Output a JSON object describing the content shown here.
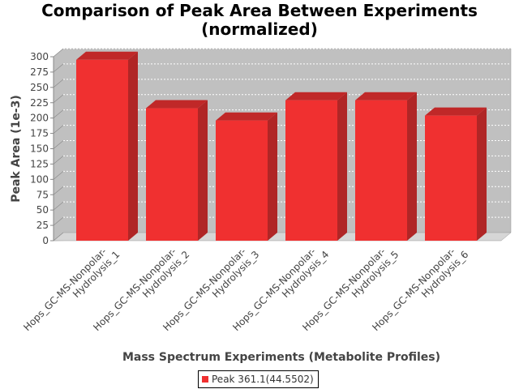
{
  "colors": {
    "bar_front": "#f03030",
    "bar_top": "#c02828",
    "bar_side": "#b02626",
    "plot_back": "#c0c0c0",
    "plot_floor": "#d6d6d6",
    "grid": "#ffffff"
  },
  "chart_data": {
    "type": "bar",
    "title": "Comparison of Peak Area Between Experiments\n(normalized)",
    "xlabel": "Mass Spectrum Experiments (Metabolite Profiles)",
    "ylabel": "Peak Area (1e-3)",
    "categories": [
      [
        "Hops_GC-MS-Nonpolar-",
        "Hydrolysis_1"
      ],
      [
        "Hops_GC-MS-Nonpolar-",
        "Hydrolysis_2"
      ],
      [
        "Hops_GC-MS-Nonpolar-",
        "Hydrolysis_3"
      ],
      [
        "Hops_GC-MS-Nonpolar-",
        "Hydrolysis_4"
      ],
      [
        "Hops_GC-MS-Nonpolar-",
        "Hydrolysis_5"
      ],
      [
        "Hops_GC-MS-Nonpolar-",
        "Hydrolysis_6"
      ]
    ],
    "series": [
      {
        "name": "Peak 361.1(44.5502)",
        "values": [
          295,
          216,
          196,
          229,
          229,
          204
        ]
      }
    ],
    "ylim": [
      0,
      300
    ],
    "yticks": [
      "0",
      "25",
      "50",
      "75",
      "100",
      "125",
      "150",
      "175",
      "200",
      "225",
      "250",
      "275",
      "300"
    ],
    "grid": true,
    "legend_position": "bottom",
    "style": "3d"
  }
}
